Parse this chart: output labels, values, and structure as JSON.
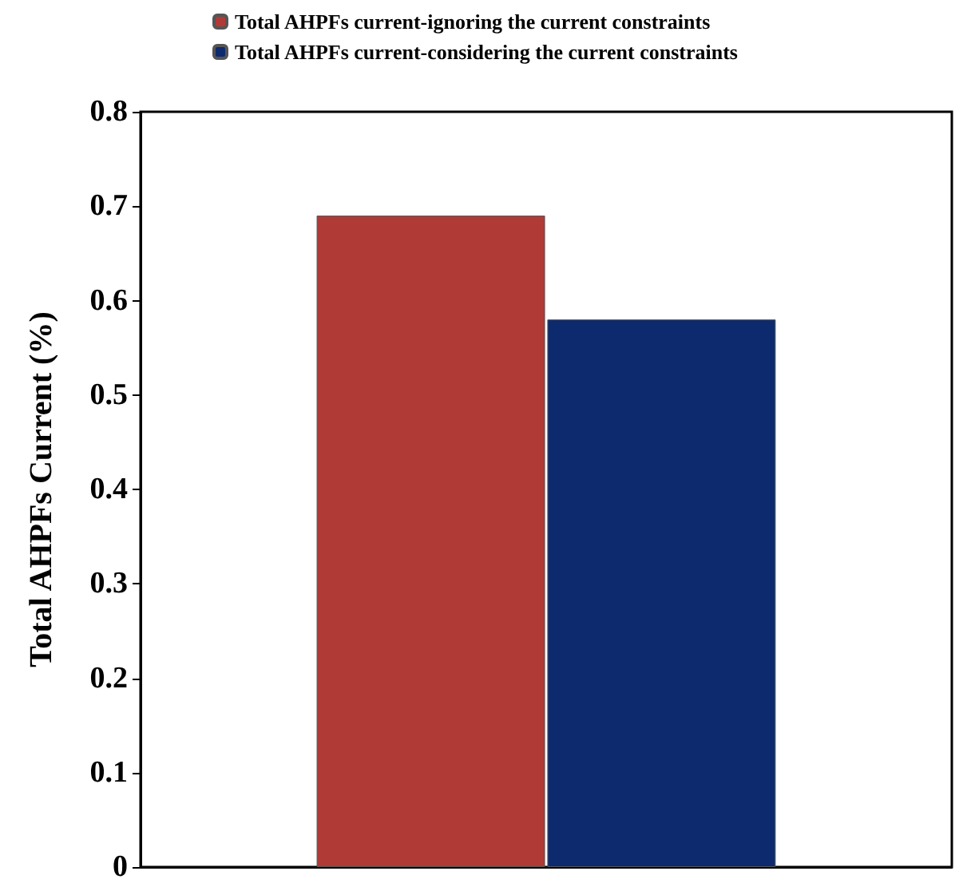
{
  "chart_data": {
    "type": "bar",
    "ylabel": "Total AHPFs Current (%)",
    "categories": [
      null
    ],
    "series": [
      {
        "name": "Total AHPFs current-ignoring the current constraints",
        "color": "#b03a36",
        "values": [
          0.69
        ]
      },
      {
        "name": "Total AHPFs current-considering the current constraints",
        "color": "#0e2a6e",
        "values": [
          0.58
        ]
      }
    ],
    "ylim": [
      0,
      0.8
    ],
    "yticks": [
      0,
      0.1,
      0.2,
      0.3,
      0.4,
      0.5,
      0.6,
      0.7,
      0.8
    ],
    "grid": false,
    "legend": "top"
  }
}
